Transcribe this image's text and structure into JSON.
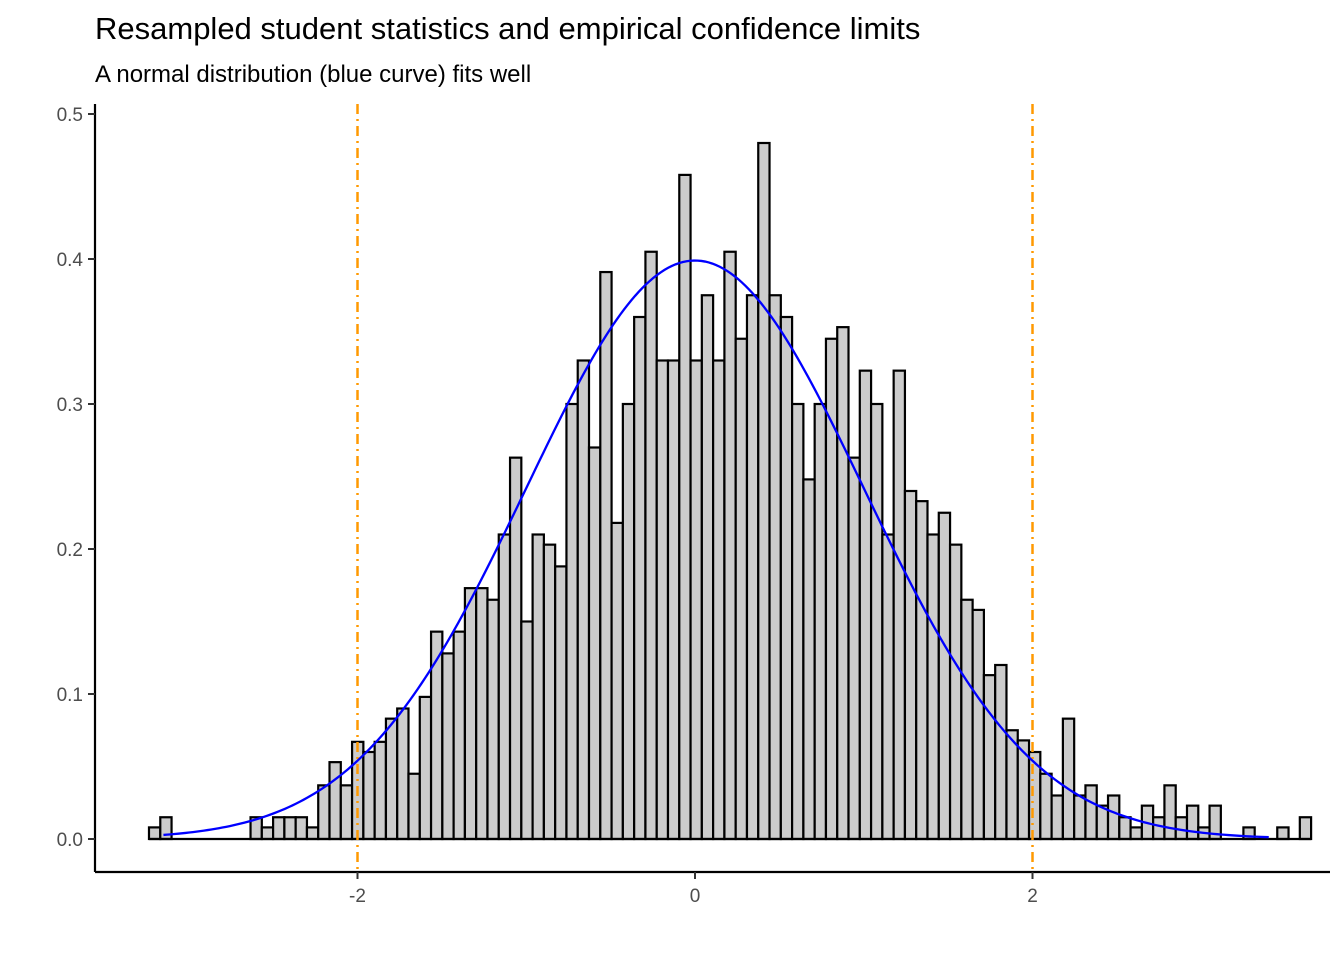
{
  "chart_data": {
    "type": "bar",
    "title": "Resampled student statistics and empirical confidence limits",
    "subtitle": "A normal distribution (blue curve) fits well",
    "xlabel": "",
    "ylabel": "",
    "xlim": [
      -3.2,
      3.4
    ],
    "ylim": [
      0,
      0.5
    ],
    "x_ticks": [
      -2,
      0,
      2
    ],
    "x_tick_labels": [
      "-2",
      "0",
      "2"
    ],
    "y_ticks": [
      0,
      0.1,
      0.2,
      0.3,
      0.4,
      0.5
    ],
    "y_tick_labels": [
      "0.0",
      "0.1",
      "0.2",
      "0.3",
      "0.4",
      "0.5"
    ],
    "grid": false,
    "bin_start": -3.2356,
    "bin_width": 0.06686,
    "densities": [
      0.008,
      0.015,
      0,
      0,
      0,
      0,
      0,
      0,
      0,
      0.015,
      0.008,
      0.015,
      0.015,
      0.015,
      0.008,
      0.037,
      0.053,
      0.037,
      0.067,
      0.06,
      0.067,
      0.083,
      0.09,
      0.045,
      0.098,
      0.143,
      0.128,
      0.143,
      0.173,
      0.173,
      0.165,
      0.21,
      0.263,
      0.15,
      0.21,
      0.203,
      0.188,
      0.3,
      0.33,
      0.27,
      0.391,
      0.218,
      0.3,
      0.36,
      0.405,
      0.33,
      0.33,
      0.458,
      0.33,
      0.375,
      0.33,
      0.405,
      0.345,
      0.375,
      0.48,
      0.375,
      0.36,
      0.3,
      0.248,
      0.3,
      0.345,
      0.353,
      0.263,
      0.323,
      0.3,
      0.21,
      0.323,
      0.24,
      0.233,
      0.21,
      0.225,
      0.203,
      0.165,
      0.158,
      0.113,
      0.12,
      0.075,
      0.068,
      0.06,
      0.045,
      0.03,
      0.083,
      0.03,
      0.037,
      0.023,
      0.03,
      0.015,
      0.008,
      0.023,
      0.015,
      0.037,
      0.015,
      0.023,
      0.008,
      0.023,
      0,
      0,
      0.008,
      0,
      0,
      0.008,
      0,
      0.015
    ],
    "normal_curve": {
      "mean": 0,
      "sd": 1,
      "x_from": -3.15,
      "x_to": 3.4
    },
    "confidence_limits": [
      -2,
      2
    ],
    "colors": {
      "bar_fill": "#cccccc",
      "bar_stroke": "#000000",
      "curve": "#0000ff",
      "limit_lines": "#ff9900",
      "axis": "#000000",
      "tick_label": "#4d4d4d"
    }
  }
}
